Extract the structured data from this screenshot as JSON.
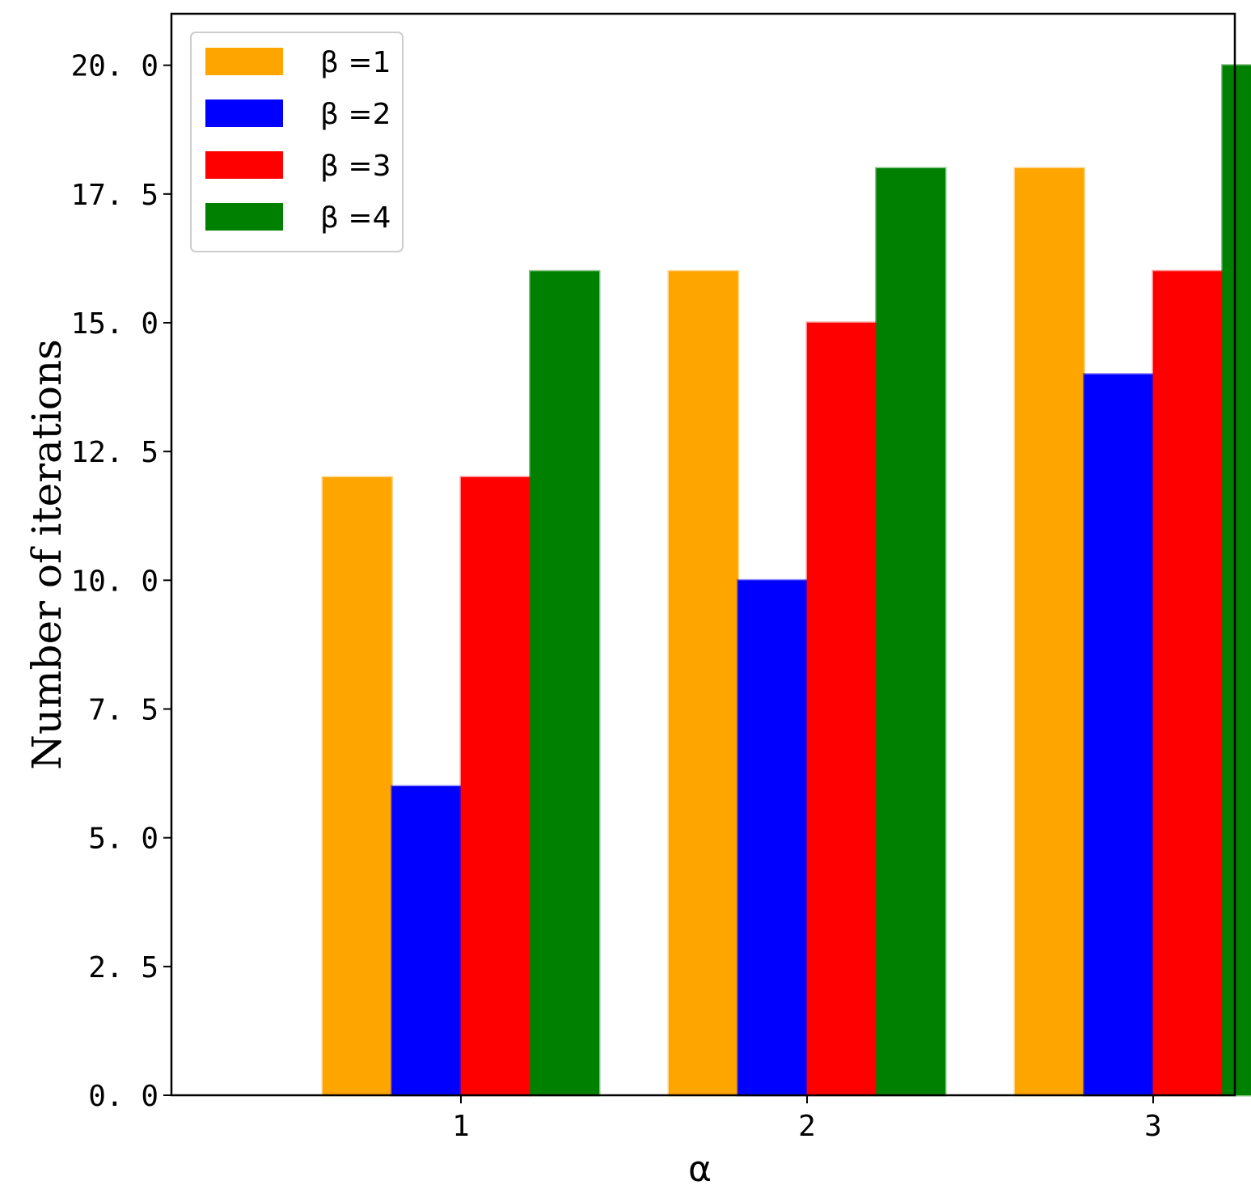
{
  "chart_data": {
    "type": "bar",
    "categories": [
      "1",
      "2",
      "3"
    ],
    "series": [
      {
        "name": "β =1",
        "color": "#ffa500",
        "values": [
          12,
          16,
          18
        ]
      },
      {
        "name": "β =2",
        "color": "#0000ff",
        "values": [
          6,
          10,
          14
        ]
      },
      {
        "name": "β =3",
        "color": "#ff0000",
        "values": [
          12,
          15,
          16
        ]
      },
      {
        "name": "β =4",
        "color": "#008000",
        "values": [
          16,
          18,
          20
        ]
      }
    ],
    "title": "",
    "xlabel": "α",
    "ylabel": "Number of iterations",
    "ylim": [
      0,
      21
    ],
    "yticks": [
      0,
      2.5,
      5,
      7.5,
      10,
      12.5,
      15,
      17.5,
      20
    ],
    "ytick_labels": [
      "0. 0",
      "2. 5",
      "5. 0",
      "7. 5",
      "10. 0",
      "12. 5",
      "15. 0",
      "17. 5",
      "20. 0"
    ],
    "grid": false,
    "legend_position": "top-left"
  }
}
